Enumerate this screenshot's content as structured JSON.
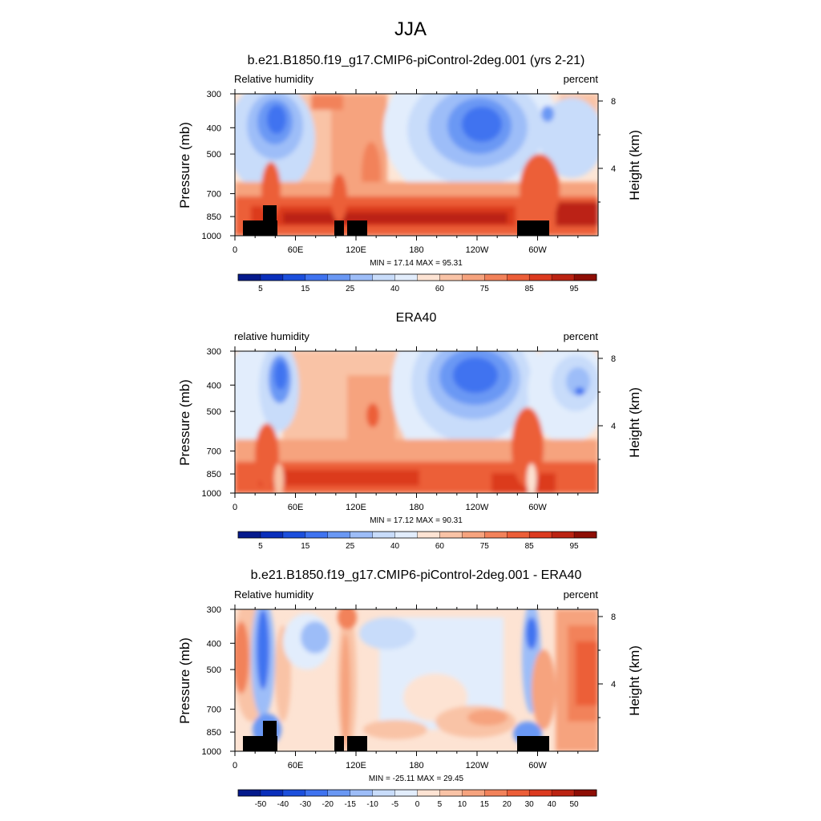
{
  "figure": {
    "title": "JJA"
  },
  "chart_data": [
    {
      "type": "heatmap",
      "title": "b.e21.B1850.f19_g17.CMIP6-piControl-2deg.001 (yrs 2-21)",
      "variable_label": "Relative humidity",
      "units_label": "percent",
      "ylabel": "Pressure (mb)",
      "ylabel_right": "Height (km)",
      "xticks": [
        "0",
        "60E",
        "120E",
        "180",
        "120W",
        "60W"
      ],
      "yticks": [
        "300",
        "400",
        "500",
        "700",
        "850",
        "1000"
      ],
      "yticks_right": [
        "8",
        "4"
      ],
      "xlim": [
        0,
        360
      ],
      "ylim": [
        1000,
        300
      ],
      "stats": "MIN =  17.14  MAX =  95.31",
      "colorbar_labels": [
        "5",
        "15",
        "25",
        "40",
        "60",
        "75",
        "85",
        "95"
      ],
      "colorbar_colors": [
        "#051a8c",
        "#0a2fbb",
        "#1c4fdc",
        "#3f73f0",
        "#6a98f4",
        "#9dbdf8",
        "#c8dcfa",
        "#e2edfc",
        "#fde3d3",
        "#f9c3a6",
        "#f6a37e",
        "#f2825a",
        "#ec5e38",
        "#dc3a1f",
        "#bb2312",
        "#8e0e05"
      ],
      "contour_levels": [
        5,
        15,
        25,
        40,
        60,
        75,
        85,
        95
      ],
      "min": 17.14,
      "max": 95.31
    },
    {
      "type": "heatmap",
      "title": "ERA40",
      "variable_label": "relative humidity",
      "units_label": "percent",
      "ylabel": "Pressure (mb)",
      "ylabel_right": "Height (km)",
      "xticks": [
        "0",
        "60E",
        "120E",
        "180",
        "120W",
        "60W"
      ],
      "yticks": [
        "300",
        "400",
        "500",
        "700",
        "850",
        "1000"
      ],
      "yticks_right": [
        "8",
        "4"
      ],
      "xlim": [
        0,
        360
      ],
      "ylim": [
        1000,
        300
      ],
      "stats": "MIN =  17.12  MAX =  90.31",
      "colorbar_labels": [
        "5",
        "15",
        "25",
        "40",
        "60",
        "75",
        "85",
        "95"
      ],
      "colorbar_colors": [
        "#051a8c",
        "#0a2fbb",
        "#1c4fdc",
        "#3f73f0",
        "#6a98f4",
        "#9dbdf8",
        "#c8dcfa",
        "#e2edfc",
        "#fde3d3",
        "#f9c3a6",
        "#f6a37e",
        "#f2825a",
        "#ec5e38",
        "#dc3a1f",
        "#bb2312",
        "#8e0e05"
      ],
      "min": 17.12,
      "max": 90.31
    },
    {
      "type": "heatmap",
      "title": "b.e21.B1850.f19_g17.CMIP6-piControl-2deg.001 - ERA40",
      "variable_label": "Relative humidity",
      "units_label": "percent",
      "ylabel": "Pressure (mb)",
      "ylabel_right": "Height (km)",
      "xticks": [
        "0",
        "60E",
        "120E",
        "180",
        "120W",
        "60W"
      ],
      "yticks": [
        "300",
        "400",
        "500",
        "700",
        "850",
        "1000"
      ],
      "yticks_right": [
        "8",
        "4"
      ],
      "xlim": [
        0,
        360
      ],
      "ylim": [
        1000,
        300
      ],
      "stats": "MIN = -25.11  MAX =  29.45",
      "colorbar_labels": [
        "-50",
        "-40",
        "-30",
        "-20",
        "-15",
        "-10",
        "-5",
        "0",
        "5",
        "10",
        "15",
        "20",
        "30",
        "40",
        "50"
      ],
      "colorbar_colors": [
        "#051a8c",
        "#0a2fbb",
        "#1c4fdc",
        "#3f73f0",
        "#6a98f4",
        "#9dbdf8",
        "#c8dcfa",
        "#e2edfc",
        "#fde3d3",
        "#f9c3a6",
        "#f6a37e",
        "#f2825a",
        "#ec5e38",
        "#dc3a1f",
        "#bb2312",
        "#8e0e05"
      ],
      "min": -25.11,
      "max": 29.45
    }
  ]
}
